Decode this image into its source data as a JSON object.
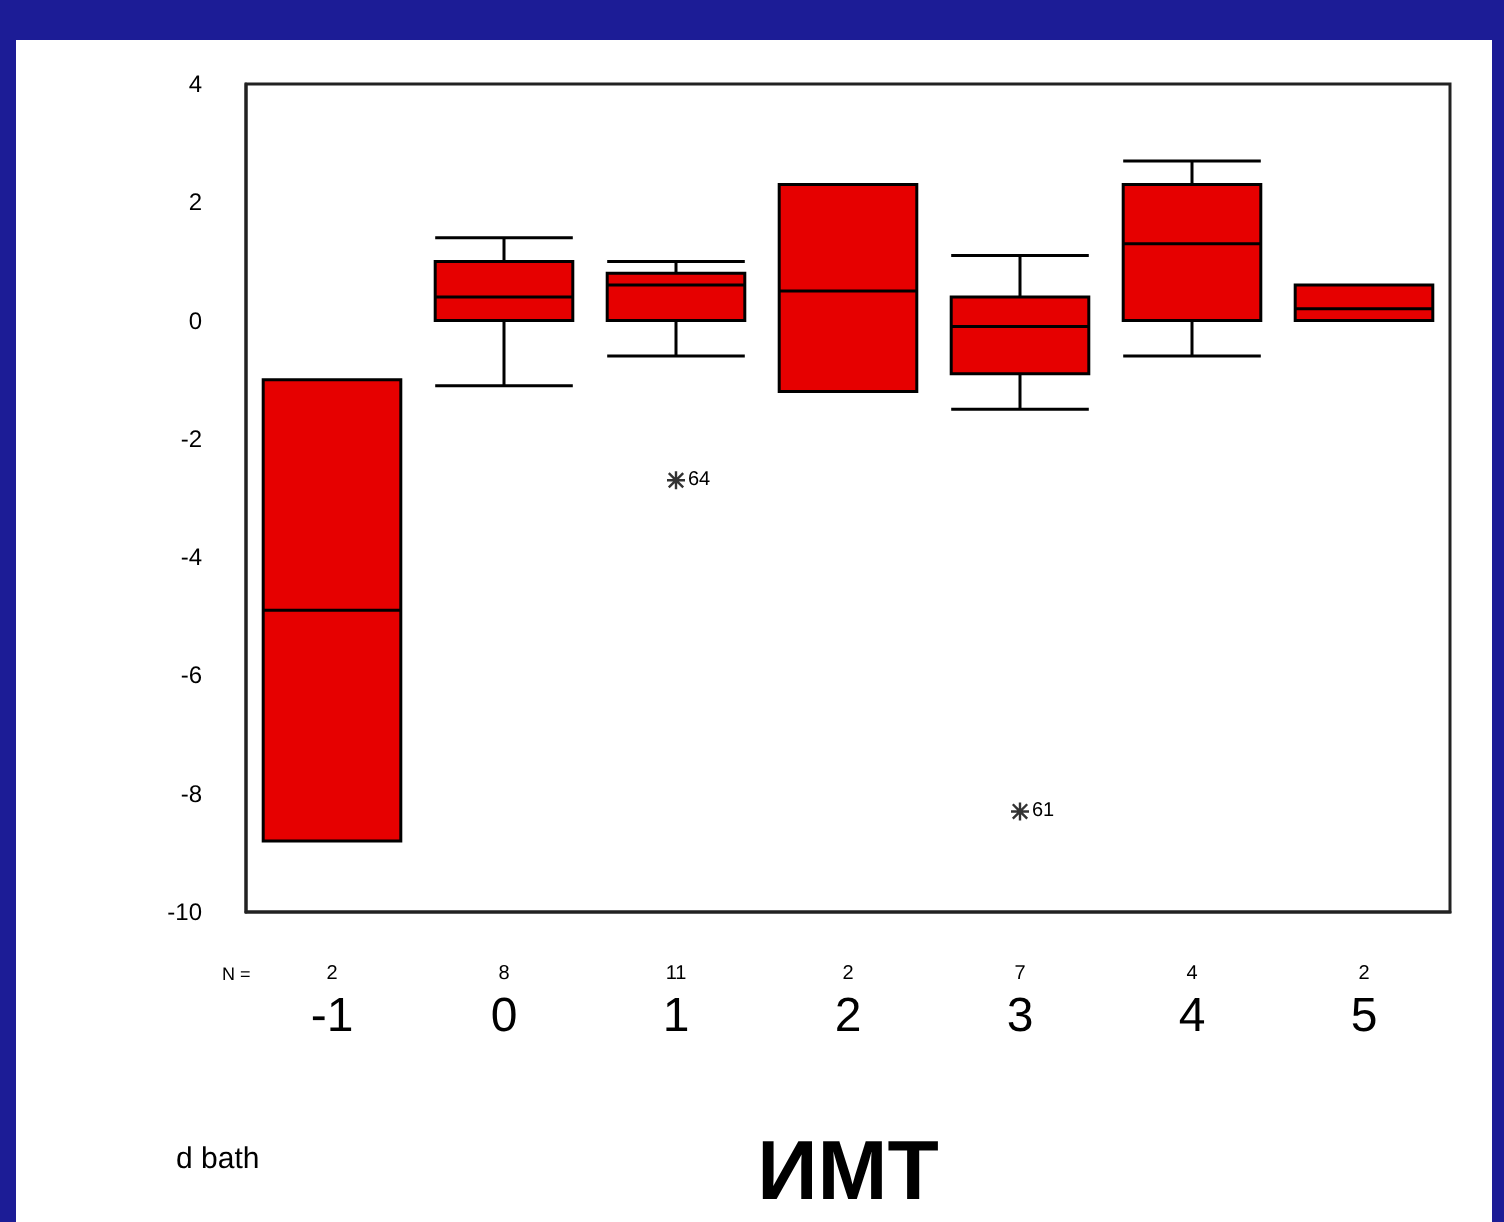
{
  "chart_data": {
    "type": "box",
    "xlabel": "ИМТ",
    "ylabel": "d bath",
    "categories": [
      "-1",
      "0",
      "1",
      "2",
      "3",
      "4",
      "5"
    ],
    "boxes": [
      {
        "low": -8.8,
        "q1": -8.8,
        "median": -4.9,
        "q3": -1.0,
        "high": -1.0
      },
      {
        "low": -1.1,
        "q1": 0,
        "median": 0.4,
        "q3": 1.0,
        "high": 1.4
      },
      {
        "low": -0.6,
        "q1": 0,
        "median": 0.6,
        "q3": 0.8,
        "high": 1.0,
        "outliers": [
          -2.7
        ]
      },
      {
        "low": -1.2,
        "q1": -1.2,
        "median": 0.5,
        "q3": 2.3,
        "high": 2.3
      },
      {
        "low": -1.5,
        "q1": -0.9,
        "median": -0.1,
        "q3": 0.4,
        "high": 1.1,
        "outliers": [
          -8.3
        ]
      },
      {
        "low": -0.6,
        "q1": 0,
        "median": 1.3,
        "q3": 2.3,
        "high": 2.7
      },
      {
        "low": 0,
        "q1": 0,
        "median": 0.2,
        "q3": 0.6,
        "high": 0.6
      }
    ],
    "color": "#e60000",
    "marker": "star",
    "ylim": [
      -10,
      4
    ],
    "yticks": [
      -10,
      -8,
      -6,
      -4,
      -2,
      0,
      2,
      4
    ],
    "annotations": [
      "64",
      "61",
      "N =",
      "2",
      "8",
      "11",
      "2",
      "7",
      "4",
      "2"
    ]
  }
}
